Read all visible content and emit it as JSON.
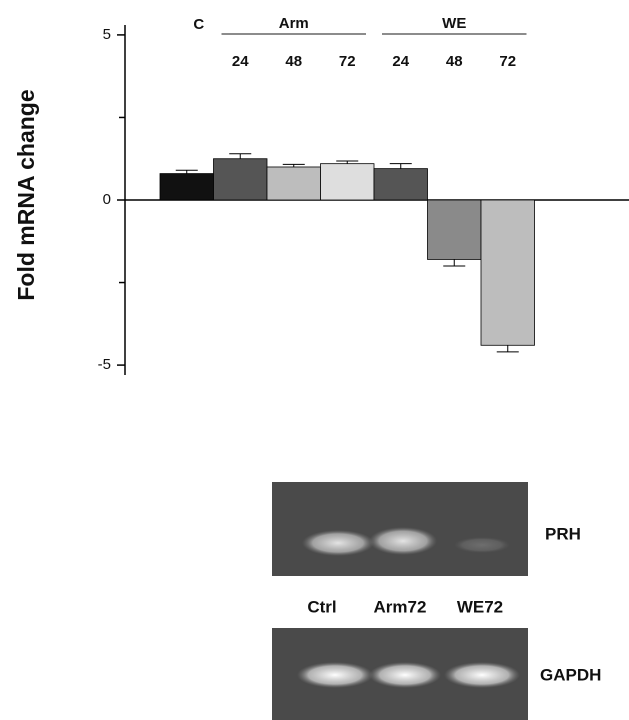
{
  "chart_data": {
    "type": "bar",
    "y_label": "Fold mRNA change",
    "categories": [
      "C",
      "24",
      "48",
      "72",
      "24",
      "48",
      "72"
    ],
    "category_groups": [
      null,
      "Arm",
      "Arm",
      "Arm",
      "WE",
      "WE",
      "WE"
    ],
    "values": [
      0.8,
      1.25,
      1.0,
      1.1,
      0.95,
      -1.8,
      -4.4
    ],
    "errors": [
      0.1,
      0.15,
      0.08,
      0.08,
      0.15,
      0.2,
      0.2
    ],
    "colors": [
      "#111111",
      "#555555",
      "#bdbdbd",
      "#dedede",
      "#555555",
      "#8a8a8a",
      "#bdbdbd"
    ],
    "ylim": [
      -5.3,
      5.3
    ],
    "yticks": [
      -5,
      0,
      5
    ],
    "minor_yticks": [
      -2.5,
      2.5
    ]
  },
  "gel": {
    "lanes": [
      "Ctrl",
      "Arm72",
      "WE72"
    ],
    "genes": [
      "PRH",
      "GAPDH"
    ]
  }
}
